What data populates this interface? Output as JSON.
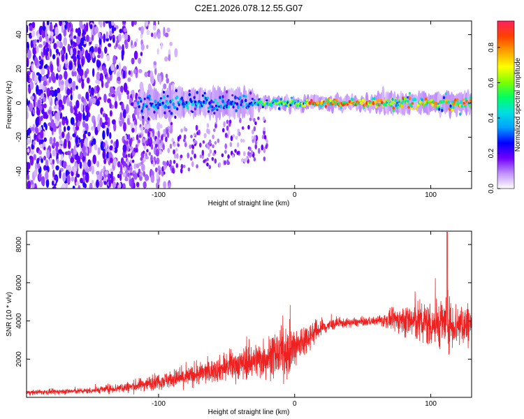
{
  "title": "C2E1.2026.078.12.55.G07",
  "chart_data": [
    {
      "type": "heatmap",
      "xlabel": "Height of straight line (km)",
      "ylabel": "Frequency (Hz)",
      "xlim": [
        -197,
        130
      ],
      "ylim": [
        -50,
        48
      ],
      "xticks": [
        -100,
        0,
        100
      ],
      "yticks": [
        -40,
        -20,
        0,
        20,
        40
      ],
      "colorbar": {
        "label": "Normalized spectral amplitude",
        "range": [
          0,
          0.95
        ],
        "ticks": [
          0.0,
          0.2,
          0.4,
          0.6,
          0.8
        ],
        "colors": [
          "#ffffff",
          "#c090ff",
          "#7000ff",
          "#0000ff",
          "#00a0ff",
          "#00e0e0",
          "#00ff60",
          "#80ff00",
          "#ffff00",
          "#ffa000",
          "#ff4000",
          "#ff2060"
        ]
      },
      "features": {
        "band_center_hz": 0,
        "band_start_km": -115,
        "noise_region_end_km": -115
      }
    },
    {
      "type": "line",
      "xlabel": "Height of straight line (km)",
      "ylabel": "SNR (10 * v/v)",
      "xlim": [
        -197,
        130
      ],
      "ylim": [
        0,
        8700
      ],
      "xticks": [
        -100,
        0,
        100
      ],
      "yticks": [
        2000,
        4000,
        6000,
        8000
      ],
      "color": "#ee2020",
      "trend": {
        "x": [
          -197,
          -150,
          -120,
          -100,
          -80,
          -60,
          -40,
          -20,
          0,
          10,
          20,
          30,
          40,
          50,
          60,
          70,
          80,
          90,
          100,
          110,
          120,
          130
        ],
        "y": [
          250,
          350,
          550,
          850,
          1050,
          1400,
          1750,
          2100,
          2500,
          3200,
          3650,
          3850,
          3900,
          3950,
          4000,
          4050,
          4050,
          3950,
          3850,
          3900,
          3800,
          3800
        ]
      },
      "spread": {
        "x": [
          -197,
          -150,
          -100,
          -60,
          -30,
          -10,
          0,
          10,
          30,
          60,
          75,
          90,
          110,
          130
        ],
        "y": [
          120,
          150,
          400,
          600,
          900,
          1200,
          1300,
          700,
          250,
          200,
          600,
          1100,
          1300,
          1100
        ]
      },
      "peak": {
        "x": 112,
        "y": 8650
      }
    }
  ]
}
